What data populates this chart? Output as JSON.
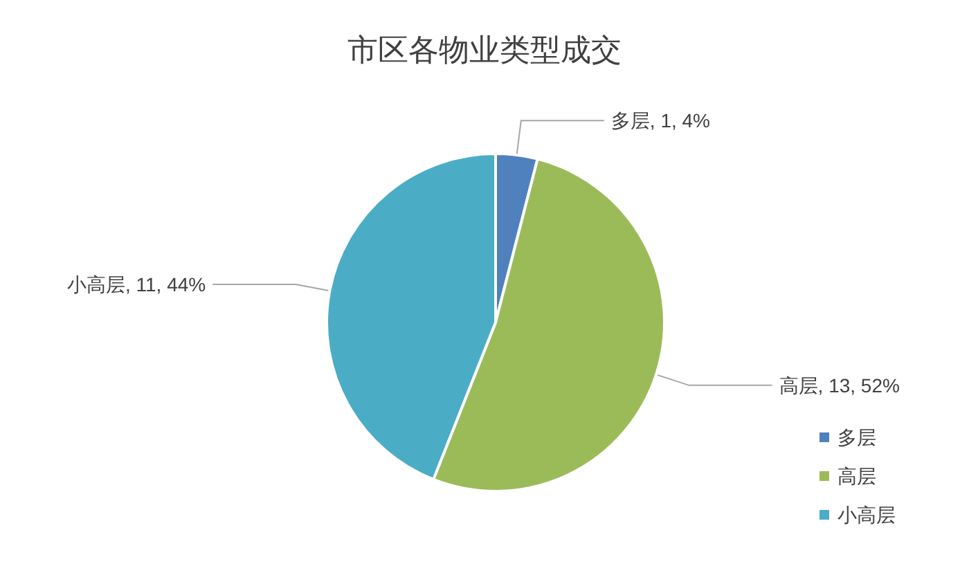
{
  "chart_data": {
    "type": "pie",
    "title": "市区各物业类型成交",
    "categories": [
      "多层",
      "高层",
      "小高层"
    ],
    "values": [
      1,
      13,
      11
    ],
    "colors": [
      "#4f81bd",
      "#9bbb59",
      "#4bacc6"
    ],
    "value_labels": [
      "多层, 1, 4%",
      "高层, 13, 52%",
      "小高层, 11, 44%"
    ],
    "legend": "bottom right"
  }
}
